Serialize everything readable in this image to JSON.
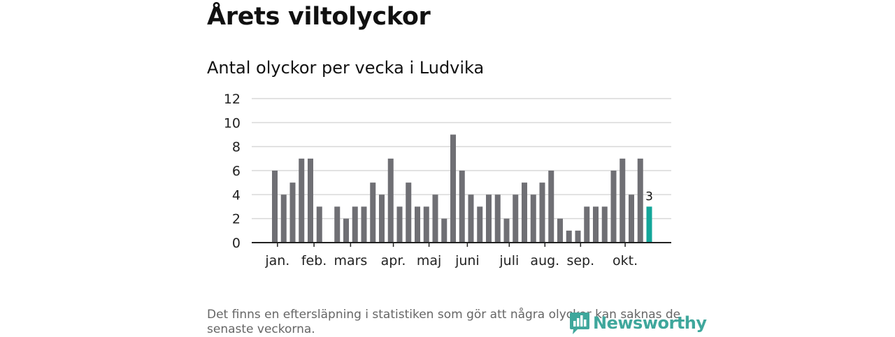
{
  "title": "Årets viltolyckor",
  "subtitle": "Antal olyckor per vecka i Ludvika",
  "footnote": "Det finns en eftersläpning i statistiken som gör att några olyckor kan saknas de senaste veckorna.",
  "brand": {
    "name": "Newsworthy",
    "icon": "newsworthy-logo-icon"
  },
  "colors": {
    "bar": "#6f6f74",
    "highlight": "#13a69a",
    "grid": "#d9d9d9",
    "axis": "#222222",
    "brand": "#3fa79c"
  },
  "chart_data": {
    "type": "bar",
    "title": "Antal olyckor per vecka i Ludvika",
    "xlabel": "",
    "ylabel": "",
    "ylim": [
      0,
      12
    ],
    "yticks": [
      0,
      2,
      4,
      6,
      8,
      10,
      12
    ],
    "grid": true,
    "weeks": [
      1,
      2,
      3,
      4,
      5,
      6,
      7,
      8,
      9,
      10,
      11,
      12,
      13,
      14,
      15,
      16,
      17,
      18,
      19,
      20,
      21,
      22,
      23,
      24,
      25,
      26,
      27,
      28,
      29,
      30,
      31,
      32,
      33,
      34,
      35,
      36,
      37,
      38,
      39,
      40,
      41,
      42,
      43,
      44
    ],
    "values": [
      6,
      4,
      5,
      7,
      7,
      3,
      0,
      3,
      2,
      3,
      3,
      5,
      4,
      7,
      3,
      5,
      3,
      3,
      4,
      2,
      9,
      6,
      4,
      3,
      4,
      4,
      2,
      4,
      5,
      4,
      5,
      6,
      2,
      1,
      1,
      3,
      3,
      3,
      6,
      7,
      4,
      7,
      3,
      null
    ],
    "month_labels": [
      {
        "label": "jan.",
        "week": 1.3
      },
      {
        "label": "feb.",
        "week": 5.4
      },
      {
        "label": "mars",
        "week": 9.5
      },
      {
        "label": "apr.",
        "week": 14.3
      },
      {
        "label": "maj",
        "week": 18.3
      },
      {
        "label": "juni",
        "week": 22.6
      },
      {
        "label": "juli",
        "week": 27.3
      },
      {
        "label": "aug.",
        "week": 31.3
      },
      {
        "label": "sep.",
        "week": 35.3
      },
      {
        "label": "okt.",
        "week": 40.3
      }
    ],
    "highlight": {
      "week": 43,
      "value": 3,
      "label": "3"
    }
  }
}
